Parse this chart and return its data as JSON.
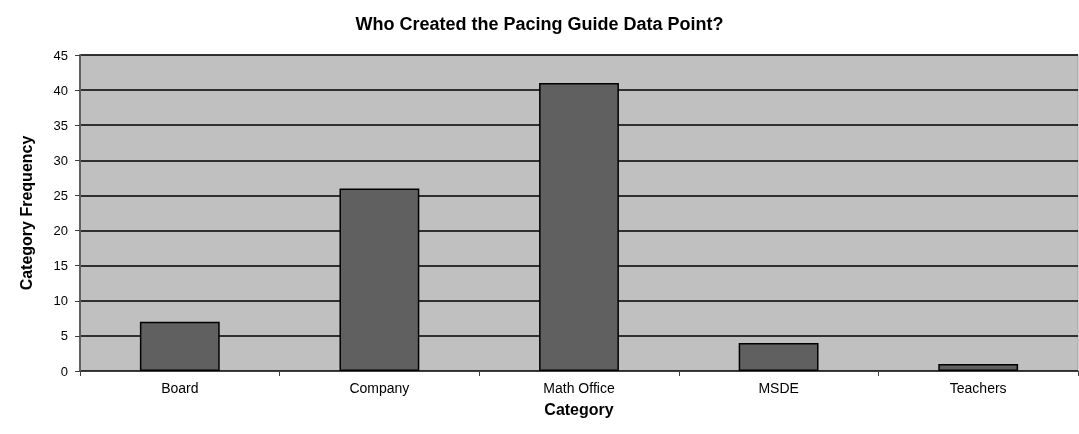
{
  "chart_data": {
    "type": "bar",
    "title": "Who Created the Pacing Guide Data Point?",
    "xlabel": "Category",
    "ylabel": "Category Frequency",
    "categories": [
      "Board",
      "Company",
      "Math Office",
      "MSDE",
      "Teachers"
    ],
    "values": [
      7,
      26,
      41,
      4,
      1
    ],
    "color": "#606060",
    "ylim": [
      0,
      45
    ],
    "yticks": [
      0,
      5,
      10,
      15,
      20,
      25,
      30,
      35,
      40,
      45
    ],
    "grid": "y"
  }
}
